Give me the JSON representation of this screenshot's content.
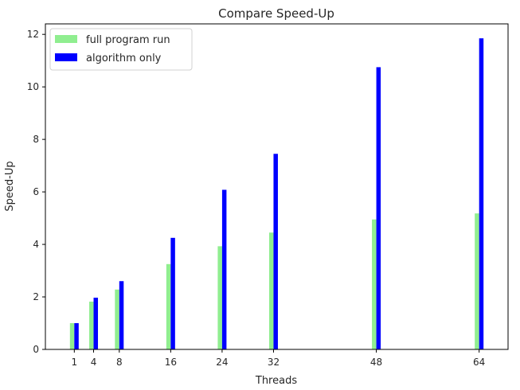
{
  "chart_data": {
    "type": "bar",
    "title": "Compare Speed-Up",
    "xlabel": "Threads",
    "ylabel": "Speed-Up",
    "x": [
      1,
      4,
      8,
      16,
      24,
      32,
      48,
      64
    ],
    "x_ticks": [
      1,
      4,
      8,
      16,
      24,
      32,
      48,
      64
    ],
    "xlim": [
      -3.5,
      68.5
    ],
    "ylim": [
      0,
      12.4
    ],
    "y_ticks": [
      0,
      2,
      4,
      6,
      8,
      10,
      12
    ],
    "grid": false,
    "legend_position": "top-left",
    "series": [
      {
        "name": "full program run",
        "color": "#90ee90",
        "values": [
          1.0,
          1.82,
          2.28,
          3.25,
          3.93,
          4.45,
          4.95,
          5.18
        ]
      },
      {
        "name": "algorithm only",
        "color": "#0000ff",
        "values": [
          1.0,
          1.97,
          2.6,
          4.25,
          6.08,
          7.45,
          10.75,
          11.85
        ]
      }
    ]
  }
}
